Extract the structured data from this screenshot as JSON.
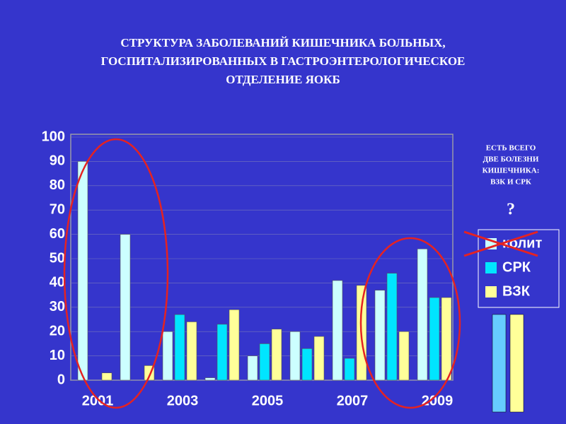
{
  "chart_data": {
    "type": "bar",
    "title": [
      "СТРУКТУРА ЗАБОЛЕВАНИЙ КИШЕЧНИКА БОЛЬНЫХ,",
      "ГОСПИТАЛИЗИРОВАННЫХ В ГАСТРОЭНТЕРОЛОГИЧЕСКОЕ",
      "ОТДЕЛЕНИЕ ЯОКБ"
    ],
    "annotations": [
      "ЕСТЬ ВСЕГО",
      "ДВЕ БОЛЕЗНИ",
      "КИШЕЧНИКА:",
      "ВЗК И СРК",
      "?"
    ],
    "categories": [
      "2001",
      null,
      "2003",
      null,
      "2005",
      null,
      "2007",
      null,
      "2009"
    ],
    "series": [
      {
        "name": "колит",
        "color": "#ccffff",
        "values": [
          90,
          60,
          20,
          1,
          10,
          20,
          41,
          37,
          54
        ]
      },
      {
        "name": "СРК",
        "color": "#00e5ff",
        "values": [
          0,
          0,
          27,
          23,
          15,
          13,
          9,
          44,
          34
        ]
      },
      {
        "name": "ВЗК",
        "color": "#ffff99",
        "values": [
          3,
          6,
          24,
          29,
          21,
          18,
          39,
          20,
          34
        ]
      }
    ],
    "ylim": [
      0,
      100
    ],
    "yticks": [
      0,
      10,
      20,
      30,
      40,
      50,
      60,
      70,
      80,
      90,
      100
    ],
    "legend": "right"
  }
}
